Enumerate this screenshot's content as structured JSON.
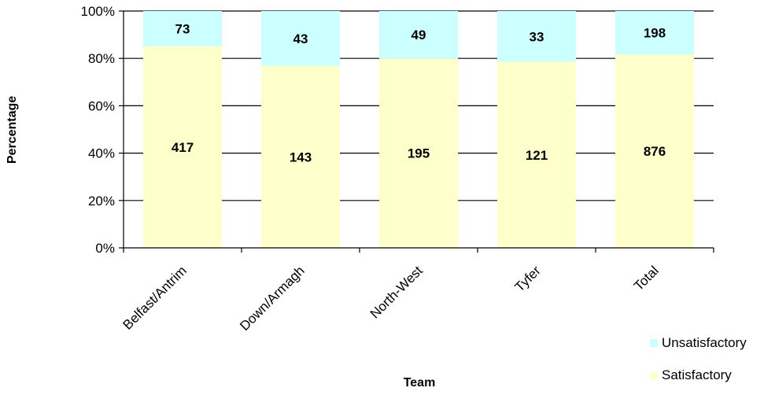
{
  "chart_data": {
    "type": "bar",
    "stacked": true,
    "normalized": true,
    "title": "",
    "xlabel": "Team",
    "ylabel": "Percentage",
    "ylim": [
      0,
      100
    ],
    "y_ticks": [
      "0%",
      "20%",
      "40%",
      "60%",
      "80%",
      "100%"
    ],
    "y_tick_values": [
      0,
      20,
      40,
      60,
      80,
      100
    ],
    "grid": "horizontal",
    "legend_position": "bottom-right",
    "categories": [
      "Belfast/Antrim",
      "Down/Armagh",
      "North-West",
      "Tyfer",
      "Total"
    ],
    "series": [
      {
        "name": "Satisfactory",
        "values": [
          417,
          143,
          195,
          121,
          876
        ],
        "color": "#ffffcc"
      },
      {
        "name": "Unsatisfactory",
        "values": [
          73,
          43,
          49,
          33,
          198
        ],
        "color": "#ccffff"
      }
    ],
    "legend": [
      "Unsatisfactory",
      "Satisfactory"
    ]
  }
}
